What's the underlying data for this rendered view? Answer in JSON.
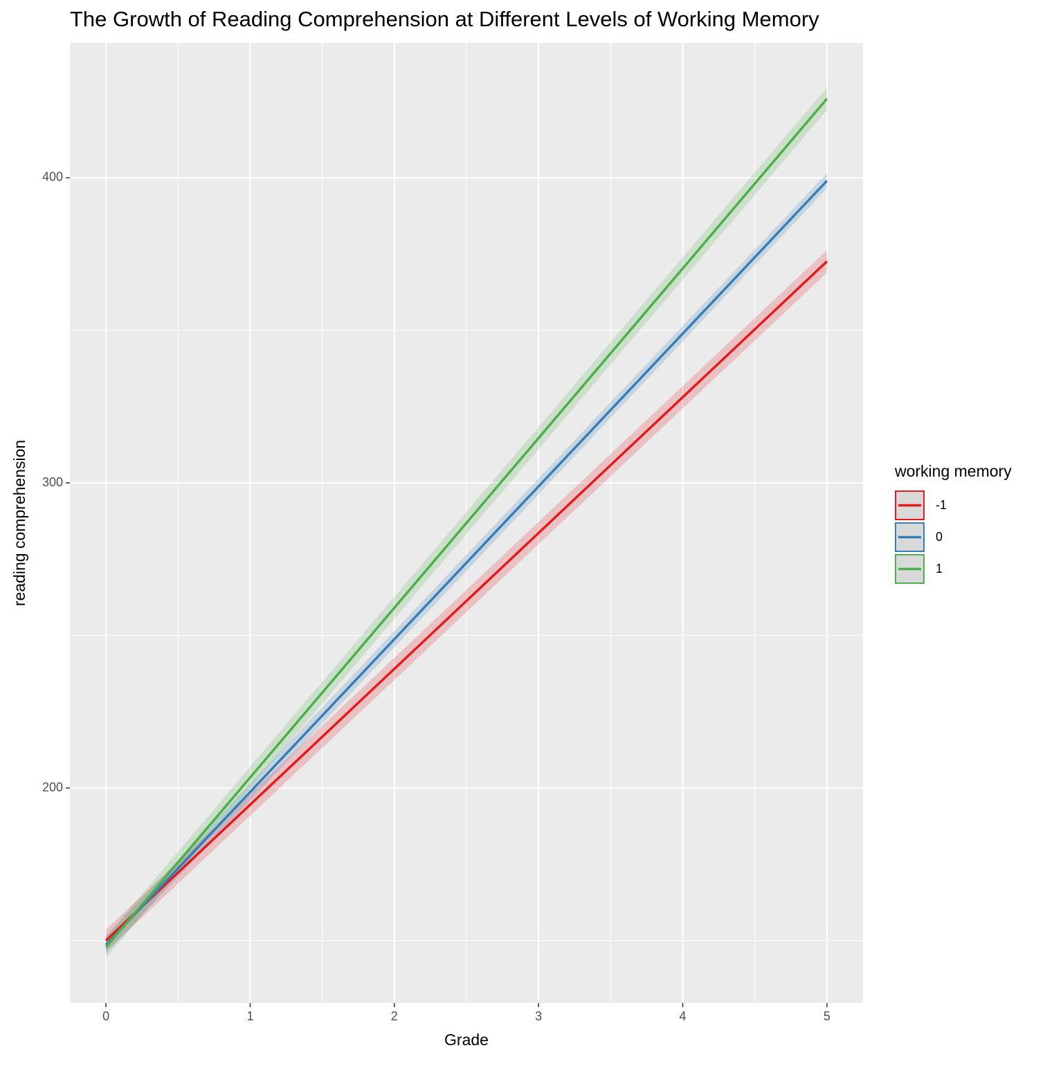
{
  "chart_data": {
    "type": "line",
    "title": "The Growth of Reading Comprehension at Different Levels of Working Memory",
    "x_label": "Grade",
    "y_label": "reading comprehension",
    "legend_title": "working memory",
    "legend_position": "right",
    "x": [
      0,
      5
    ],
    "series": [
      {
        "name": "-1",
        "color": "#e41a1c",
        "values": [
          150,
          372.6
        ],
        "lower": [
          146.4,
          368.9
        ],
        "upper": [
          153.6,
          376.3
        ]
      },
      {
        "name": "0",
        "color": "#377eb8",
        "values": [
          148.6,
          399
        ],
        "lower": [
          145.8,
          396.5
        ],
        "upper": [
          151.4,
          401.5
        ]
      },
      {
        "name": "1",
        "color": "#4daf4a",
        "values": [
          147.8,
          425.9
        ],
        "lower": [
          144.3,
          422.2
        ],
        "upper": [
          151.3,
          429.6
        ]
      }
    ],
    "xlim": [
      -0.25,
      5.25
    ],
    "xticks": [
      0,
      1,
      2,
      3,
      4,
      5
    ],
    "ylim": [
      129.5,
      444.2
    ],
    "yticks": [
      200,
      300,
      400
    ],
    "grid": true
  }
}
